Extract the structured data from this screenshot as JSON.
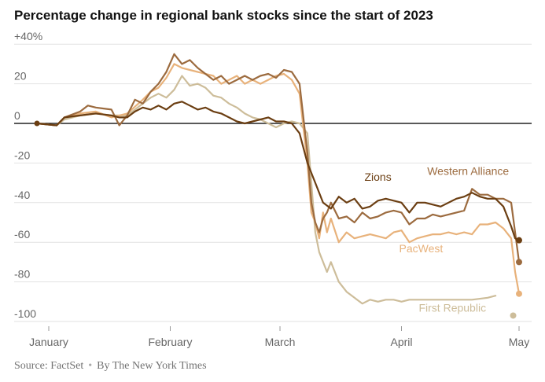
{
  "title": "Percentage change in regional bank stocks since the start of 2023",
  "footer": {
    "source": "Source: FactSet",
    "separator": "•",
    "byline": "By The New York Times"
  },
  "colors": {
    "Zions": "#6b3e12",
    "Western Alliance": "#9c6b3f",
    "PacWest": "#e8b27b",
    "First Republic": "#cdbd9a",
    "zero_line": "#222222",
    "grid": "#e2e2e2",
    "tick_text": "#666666"
  },
  "chart_data": {
    "type": "line",
    "title": "Percentage change in regional bank stocks since the start of 2023",
    "xlabel": "",
    "ylabel": "",
    "ylim": [
      -102,
      42
    ],
    "xlim": [
      -3,
      128
    ],
    "grid": true,
    "y_ticks": [
      {
        "value": 40,
        "label": "+40%"
      },
      {
        "value": 20,
        "label": "20"
      },
      {
        "value": 0,
        "label": "0"
      },
      {
        "value": -20,
        "label": "-20"
      },
      {
        "value": -40,
        "label": "-40"
      },
      {
        "value": -60,
        "label": "-60"
      },
      {
        "value": -80,
        "label": "-80"
      },
      {
        "value": -100,
        "label": "-100"
      }
    ],
    "x_ticks": [
      {
        "value": 0,
        "label": "January"
      },
      {
        "value": 31,
        "label": "February"
      },
      {
        "value": 59,
        "label": "March"
      },
      {
        "value": 90,
        "label": "April"
      },
      {
        "value": 120,
        "label": "May"
      }
    ],
    "series": [
      {
        "name": "First Republic",
        "points": [
          [
            -3,
            0
          ],
          [
            2,
            -1
          ],
          [
            4,
            2
          ],
          [
            8,
            4
          ],
          [
            12,
            5
          ],
          [
            16,
            4
          ],
          [
            20,
            4
          ],
          [
            24,
            10
          ],
          [
            26,
            13
          ],
          [
            28,
            15
          ],
          [
            30,
            13
          ],
          [
            32,
            17
          ],
          [
            34,
            24
          ],
          [
            36,
            19
          ],
          [
            38,
            20
          ],
          [
            40,
            18
          ],
          [
            42,
            14
          ],
          [
            44,
            13
          ],
          [
            46,
            10
          ],
          [
            48,
            8
          ],
          [
            50,
            5
          ],
          [
            52,
            3
          ],
          [
            54,
            2
          ],
          [
            56,
            0
          ],
          [
            58,
            -2
          ],
          [
            60,
            0
          ],
          [
            62,
            1
          ],
          [
            64,
            0
          ],
          [
            66,
            -5
          ],
          [
            67,
            -30
          ],
          [
            68,
            -55
          ],
          [
            69,
            -65
          ],
          [
            71,
            -75
          ],
          [
            72,
            -70
          ],
          [
            74,
            -80
          ],
          [
            76,
            -85
          ],
          [
            78,
            -88
          ],
          [
            80,
            -91
          ],
          [
            82,
            -89
          ],
          [
            84,
            -90
          ],
          [
            86,
            -89
          ],
          [
            88,
            -89
          ],
          [
            90,
            -90
          ],
          [
            92,
            -89
          ],
          [
            96,
            -89
          ],
          [
            100,
            -89
          ],
          [
            104,
            -89
          ],
          [
            108,
            -89
          ],
          [
            112,
            -88
          ],
          [
            114,
            -87
          ]
        ],
        "end_marker": [
          118.5,
          -97
        ],
        "label": "First Republic",
        "label_pos": [
          103,
          -95
        ]
      },
      {
        "name": "PacWest",
        "points": [
          [
            -3,
            0
          ],
          [
            2,
            -1
          ],
          [
            4,
            3
          ],
          [
            8,
            5
          ],
          [
            12,
            6
          ],
          [
            16,
            3
          ],
          [
            20,
            5
          ],
          [
            24,
            12
          ],
          [
            26,
            16
          ],
          [
            28,
            18
          ],
          [
            30,
            23
          ],
          [
            32,
            30
          ],
          [
            34,
            28
          ],
          [
            36,
            27
          ],
          [
            38,
            26
          ],
          [
            40,
            25
          ],
          [
            42,
            24
          ],
          [
            44,
            20
          ],
          [
            46,
            22
          ],
          [
            48,
            24
          ],
          [
            50,
            20
          ],
          [
            52,
            22
          ],
          [
            54,
            20
          ],
          [
            56,
            22
          ],
          [
            58,
            24
          ],
          [
            60,
            25
          ],
          [
            62,
            22
          ],
          [
            64,
            15
          ],
          [
            66,
            -20
          ],
          [
            67,
            -45
          ],
          [
            68,
            -50
          ],
          [
            69,
            -58
          ],
          [
            70,
            -45
          ],
          [
            71,
            -55
          ],
          [
            72,
            -48
          ],
          [
            74,
            -60
          ],
          [
            76,
            -55
          ],
          [
            78,
            -58
          ],
          [
            80,
            -57
          ],
          [
            82,
            -56
          ],
          [
            84,
            -57
          ],
          [
            86,
            -58
          ],
          [
            88,
            -55
          ],
          [
            90,
            -54
          ],
          [
            92,
            -60
          ],
          [
            94,
            -58
          ],
          [
            96,
            -57
          ],
          [
            98,
            -56
          ],
          [
            100,
            -56
          ],
          [
            102,
            -55
          ],
          [
            104,
            -56
          ],
          [
            106,
            -55
          ],
          [
            108,
            -56
          ],
          [
            110,
            -51
          ],
          [
            112,
            -51
          ],
          [
            114,
            -50
          ],
          [
            116,
            -53
          ],
          [
            118,
            -58
          ],
          [
            119,
            -75
          ],
          [
            120,
            -86
          ]
        ],
        "label": "PacWest",
        "label_pos": [
          95,
          -65
        ]
      },
      {
        "name": "Western Alliance",
        "points": [
          [
            -3,
            0
          ],
          [
            2,
            -1
          ],
          [
            4,
            3
          ],
          [
            8,
            6
          ],
          [
            10,
            9
          ],
          [
            12,
            8
          ],
          [
            16,
            7
          ],
          [
            18,
            -1
          ],
          [
            20,
            4
          ],
          [
            22,
            12
          ],
          [
            24,
            10
          ],
          [
            26,
            16
          ],
          [
            28,
            20
          ],
          [
            30,
            26
          ],
          [
            32,
            35
          ],
          [
            34,
            30
          ],
          [
            36,
            32
          ],
          [
            38,
            28
          ],
          [
            40,
            25
          ],
          [
            42,
            22
          ],
          [
            44,
            24
          ],
          [
            46,
            20
          ],
          [
            48,
            22
          ],
          [
            50,
            24
          ],
          [
            52,
            22
          ],
          [
            54,
            24
          ],
          [
            56,
            25
          ],
          [
            58,
            23
          ],
          [
            60,
            27
          ],
          [
            62,
            26
          ],
          [
            64,
            20
          ],
          [
            66,
            -15
          ],
          [
            67,
            -40
          ],
          [
            68,
            -50
          ],
          [
            69,
            -55
          ],
          [
            70,
            -48
          ],
          [
            71,
            -45
          ],
          [
            72,
            -40
          ],
          [
            74,
            -48
          ],
          [
            76,
            -47
          ],
          [
            78,
            -50
          ],
          [
            80,
            -45
          ],
          [
            82,
            -48
          ],
          [
            84,
            -47
          ],
          [
            86,
            -45
          ],
          [
            88,
            -44
          ],
          [
            90,
            -45
          ],
          [
            92,
            -51
          ],
          [
            94,
            -48
          ],
          [
            96,
            -48
          ],
          [
            98,
            -46
          ],
          [
            100,
            -47
          ],
          [
            102,
            -46
          ],
          [
            104,
            -45
          ],
          [
            106,
            -44
          ],
          [
            108,
            -33
          ],
          [
            110,
            -36
          ],
          [
            112,
            -36
          ],
          [
            114,
            -38
          ],
          [
            116,
            -38
          ],
          [
            118,
            -40
          ],
          [
            119,
            -55
          ],
          [
            120,
            -70
          ]
        ],
        "label": "Western Alliance",
        "label_pos": [
          107,
          -26
        ]
      },
      {
        "name": "Zions",
        "points": [
          [
            -3,
            0
          ],
          [
            2,
            -1
          ],
          [
            4,
            3
          ],
          [
            8,
            4
          ],
          [
            12,
            5
          ],
          [
            16,
            4
          ],
          [
            18,
            3
          ],
          [
            20,
            3
          ],
          [
            22,
            6
          ],
          [
            24,
            8
          ],
          [
            26,
            7
          ],
          [
            28,
            9
          ],
          [
            30,
            7
          ],
          [
            32,
            10
          ],
          [
            34,
            11
          ],
          [
            36,
            9
          ],
          [
            38,
            7
          ],
          [
            40,
            8
          ],
          [
            42,
            6
          ],
          [
            44,
            5
          ],
          [
            46,
            3
          ],
          [
            48,
            1
          ],
          [
            50,
            0
          ],
          [
            52,
            1
          ],
          [
            54,
            2
          ],
          [
            56,
            3
          ],
          [
            58,
            1
          ],
          [
            60,
            1
          ],
          [
            62,
            0
          ],
          [
            64,
            -5
          ],
          [
            66,
            -20
          ],
          [
            68,
            -30
          ],
          [
            70,
            -40
          ],
          [
            72,
            -43
          ],
          [
            74,
            -37
          ],
          [
            76,
            -40
          ],
          [
            78,
            -38
          ],
          [
            80,
            -43
          ],
          [
            82,
            -42
          ],
          [
            84,
            -39
          ],
          [
            86,
            -38
          ],
          [
            88,
            -39
          ],
          [
            90,
            -40
          ],
          [
            92,
            -45
          ],
          [
            94,
            -40
          ],
          [
            96,
            -40
          ],
          [
            98,
            -41
          ],
          [
            100,
            -42
          ],
          [
            102,
            -40
          ],
          [
            104,
            -38
          ],
          [
            106,
            -37
          ],
          [
            108,
            -35
          ],
          [
            110,
            -37
          ],
          [
            112,
            -38
          ],
          [
            114,
            -38
          ],
          [
            116,
            -42
          ],
          [
            118,
            -52
          ],
          [
            119,
            -58
          ],
          [
            120,
            -59
          ]
        ],
        "label": "Zions",
        "label_pos": [
          84,
          -29
        ]
      }
    ]
  }
}
